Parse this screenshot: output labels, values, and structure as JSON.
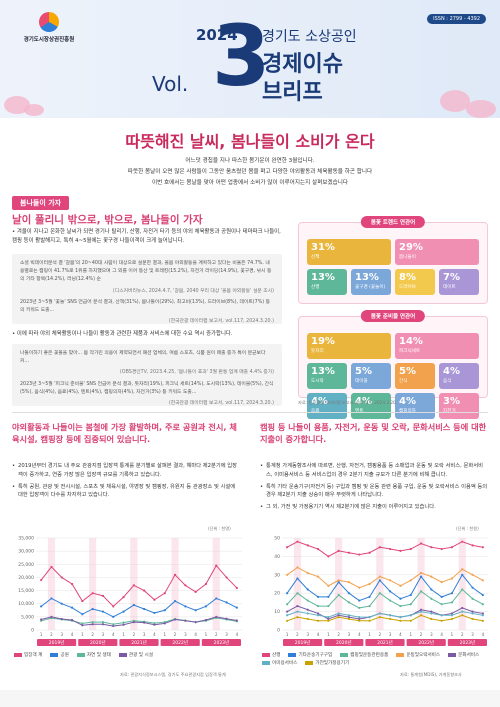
{
  "header": {
    "org": "경기도시장상권진흥원",
    "issn": "ISSN : 2799 - 4392",
    "year": "2024",
    "vol": "Vol.",
    "number": "3",
    "title1": "경기도 소상공인",
    "title2": "경제이슈",
    "title3": "브리프"
  },
  "headline": "따뜻해진 날씨, 봄나들이 소비가 온다",
  "intro": [
    "어느덧 경칩을 지나 따스한 봄기운이 완연한 3월입니다.",
    "따뜻한 봄날이 오면 많은 사람들이 그동안 움츠렸던 몸을 펴고 다양한 야외활동과 체육활동을 하곤 합니다",
    "이번 호에서는 봄날을 맞아 어떤 업종에서 소비가 많이 이루어지는지 살펴보겠습니다"
  ],
  "section": {
    "tag": "봄나들이 가자",
    "title": "날이 풀리니 밖으로, 밖으로, 봄나들이 가자",
    "para1": "• 겨울이 지나고 온화한 날씨가 되면 경기나 탈리기, 산행, 자전거 타기 등의 야외 체육활동과 공원이나 테마파크 나들이, 캠핑 등이 활발해지고, 특히 4~5월에는 꽃구경 나들이객이 크게 늘어납니다.",
    "quote1a": "소셜 빅데이터분석 결 '갈봄'의 20~40대 사람이 대상으로 설문한 결과, 올봄 야외활동을 계획하고 있다는 비율은 74.7%. 내용별로는 캠핑이 41.7%로 1위를 차지했으며 그 외를 이어 등산 및 트레킹(15.2%), 자전거 라이딩(14.9%), 꽃구경, 낚시 등의 기타 항목(14.2%), 러닝(12.4%) 순",
    "quote1a_src": "(디스커버리뉴스, 2024.4.7, '갈봄, 2040 우리 대상 '올봄 야외활동' 설문 조사)",
    "quote1b": "2023년 3~5월 '꽃놀' SNS 언급어 분석 결과, 산책(31%), 봄나들이(29%), 최고비(13%), 드라이브(8%), 데이트(7%) 등의 키워드 도출...",
    "quote1b_src": "(한국관광 데이터랩 보고서, vol.117, 2024.3.20.)",
    "para2": "• 이에 따라 야외 체육활동이나 나들이 활동과 관련한 제품과 서비스에 대한 수요 역시 증가합니다.",
    "quote2a": "나들이하기 좋은 꽃들을 맞아... 봄 작가민 의용이 제약되면서 패션 업체의, 여름 스포츠, 식품 원이 매출 증가 특이 분균보다 커...",
    "quote2a_src": "(OBS경인TV, 2023.4.25, '봄나들이 효과' 3월 판통 업계 매출 4.4% 증가)",
    "quote2b": "2023년 3~5월 '피크닉 준비물' SNS 언급어 분석 결과, 돗자리(19%), 피크닉 세트(14%), 도시락(13%), 테이블(5%), 간식(5%), 음식(4%), 음료(4%), 텐트(4%), 캠핑의자(4%), 자전거(3%) 등 키워드 도출...",
    "quote2b_src": "(한국관광 데이터랩 보고서, vol.117, 2024.3.20.)"
  },
  "info1": {
    "title": "봄꽃 트렌드 연관어",
    "tiles": [
      {
        "pct": "31%",
        "lbl": "산책",
        "color": "#e9b53c"
      },
      {
        "pct": "29%",
        "lbl": "봄나들이",
        "color": "#f08fb1"
      },
      {
        "pct": "13%",
        "lbl": "산행",
        "color": "#5fb79a"
      },
      {
        "pct": "13%",
        "lbl": "꽃구경 (꽃놀이)",
        "color": "#7ba7d9"
      },
      {
        "pct": "8%",
        "lbl": "드라이브",
        "color": "#f2c94c"
      },
      {
        "pct": "7%",
        "lbl": "데이트",
        "color": "#a896d6"
      }
    ]
  },
  "info2": {
    "title": "봄꽃 준비물 연관어",
    "tiles": [
      {
        "pct": "19%",
        "lbl": "돗자리",
        "color": "#e9b53c"
      },
      {
        "pct": "14%",
        "lbl": "피크닉세트",
        "color": "#f08fb1"
      },
      {
        "pct": "13%",
        "lbl": "도시락",
        "color": "#5fb79a"
      },
      {
        "pct": "5%",
        "lbl": "테이블",
        "color": "#7ba7d9"
      },
      {
        "pct": "5%",
        "lbl": "간식",
        "color": "#f2a14c"
      },
      {
        "pct": "4%",
        "lbl": "음식",
        "color": "#a896d6"
      },
      {
        "pct": "4%",
        "lbl": "음료",
        "color": "#62b0c4"
      },
      {
        "pct": "4%",
        "lbl": "텐트",
        "color": "#5fb79a"
      },
      {
        "pct": "4%",
        "lbl": "캠핑의자",
        "color": "#7ba7d9"
      },
      {
        "pct": "3%",
        "lbl": "자전거",
        "color": "#f08fb1"
      }
    ],
    "src": "자료: 한국관광 데이터랩 보고서, vol.117, 2024.3.20."
  },
  "bottom_left": {
    "title": "야외활동과 나들이는 봄철에 가장 활발하며, 주로 공원과 전시, 체육시설, 캠핑장 등에 집중되어 있습니다.",
    "bullets": [
      "2019년부터 경기도 내 주요 관광지점 입장객 통계를 분기별로 살펴본 결과, 해마다 제2분기에 입장객이 증가하고, 연중 가장 많은 입장객 규모를 기록하고 있습니다.",
      "특히 공원, 관광 및 전시시설, 스포츠 및 체육시설, 야영장 및 캠핑장, 유원지 등 관광장소 및 시설에 대한 입장객이 다수를 차지하고 있습니다."
    ],
    "unit": "(단위 : 천명)",
    "src": "자료: 관광지식정보시스템, 경기도 주요관광지점 입장객 통계"
  },
  "bottom_right": {
    "title": "캠핑 등 나들이 용품, 자전거, 운동 및 오락, 문화서비스 등에 대한 지출이 증가합니다.",
    "bullets": [
      "통계청 가계동향조사에 따르면, 산행, 자전거, 캠핑용품 등 소매업과 운동 및 오락 서비스, 문화서비스, 이미용서비스 등 서비스업의 경우 2분기 지출 규모가 다른 분기에 비해 큽니다.",
      "특히 기타 운송기구(자전거 등) 구입과 캠핑 및 운동 관련 용품 구입, 운동 및 오락서비스 이용액 등의 경우 제2분기 지출 상승이 매우 뚜렷하게 나타납니다.",
      "그 외, 가전 및 가정용기기 역시 제2분기에 많은 지출이 이루어지고 있습니다."
    ],
    "unit": "(단위 : 천원)",
    "src": "자료: 통계청(MDIS), 가계동향조사"
  },
  "chart_data": [
    {
      "type": "line",
      "title": "",
      "ylabel": "(단위 : 천명)",
      "ylim": [
        0,
        35000
      ],
      "yticks": [
        0,
        5000,
        10000,
        15000,
        20000,
        25000,
        30000,
        35000
      ],
      "categories": [
        "1",
        "2",
        "3",
        "4",
        "1",
        "2",
        "3",
        "4",
        "1",
        "2",
        "3",
        "4",
        "1",
        "2",
        "3",
        "4",
        "1",
        "2",
        "3",
        "4"
      ],
      "year_groups": [
        "2019년",
        "2020년",
        "2021년",
        "2022년",
        "2023년"
      ],
      "series": [
        {
          "name": "입장객 계",
          "color": "#e0457b",
          "values": [
            19000,
            24000,
            20000,
            17500,
            11000,
            14000,
            13000,
            9000,
            12500,
            17000,
            15000,
            11500,
            14000,
            21000,
            17000,
            14500,
            17500,
            24500,
            20000,
            16000
          ]
        },
        {
          "name": "공원",
          "color": "#2f7fd8",
          "values": [
            9000,
            12000,
            10000,
            8500,
            6000,
            8000,
            7000,
            5000,
            7000,
            9500,
            8000,
            6500,
            7500,
            11000,
            9000,
            7500,
            9000,
            12000,
            10500,
            8500
          ]
        },
        {
          "name": "자연 및 생태",
          "color": "#5fb79a",
          "values": [
            3500,
            4500,
            4000,
            3500,
            2500,
            3000,
            3000,
            2200,
            2800,
            3500,
            3200,
            2600,
            3000,
            4200,
            3600,
            3000,
            3500,
            4600,
            4000,
            3300
          ]
        },
        {
          "name": "관광 및 시설",
          "color": "#7a5aa6",
          "values": [
            4000,
            5000,
            4200,
            3800,
            1800,
            2200,
            2200,
            1500,
            2000,
            3000,
            2800,
            2000,
            2500,
            4000,
            3500,
            3000,
            3800,
            5000,
            4300,
            3600
          ]
        }
      ]
    },
    {
      "type": "line",
      "title": "",
      "ylabel": "(단위 : 천원)",
      "ylim": [
        0,
        50
      ],
      "yticks": [
        0,
        10,
        20,
        30,
        40,
        50
      ],
      "categories": [
        "1",
        "2",
        "3",
        "4",
        "1",
        "2",
        "3",
        "4",
        "1",
        "2",
        "3",
        "4",
        "1",
        "2",
        "3",
        "4",
        "1",
        "2",
        "3",
        "4"
      ],
      "year_groups": [
        "2019년",
        "2020년",
        "2021년",
        "2022년",
        "2023년"
      ],
      "series": [
        {
          "name": "산행",
          "color": "#e0457b",
          "values": [
            45,
            48,
            46,
            44,
            40,
            43,
            42,
            41,
            42,
            45,
            44,
            43,
            44,
            47,
            45,
            44,
            45,
            48,
            46,
            45
          ]
        },
        {
          "name": "기타운송기구구입",
          "color": "#2f7fd8",
          "values": [
            20,
            28,
            22,
            18,
            18,
            26,
            20,
            16,
            18,
            27,
            21,
            17,
            19,
            29,
            22,
            18,
            20,
            30,
            23,
            19
          ]
        },
        {
          "name": "캠핑및운동관련용품",
          "color": "#5fb79a",
          "values": [
            14,
            20,
            16,
            13,
            13,
            19,
            15,
            12,
            13,
            20,
            16,
            13,
            14,
            21,
            17,
            14,
            15,
            22,
            17,
            14
          ]
        },
        {
          "name": "운동및오락서비스",
          "color": "#f2a14c",
          "values": [
            30,
            34,
            31,
            29,
            24,
            27,
            26,
            23,
            25,
            29,
            27,
            24,
            27,
            31,
            29,
            26,
            28,
            33,
            30,
            27
          ]
        },
        {
          "name": "문화서비스",
          "color": "#7a5aa6",
          "values": [
            10,
            13,
            11,
            9,
            6,
            8,
            7,
            6,
            7,
            9,
            8,
            7,
            8,
            11,
            10,
            8,
            9,
            12,
            10,
            9
          ]
        },
        {
          "name": "이미용서비스",
          "color": "#62b0c4",
          "values": [
            8,
            10,
            9,
            8,
            7,
            9,
            8,
            7,
            7,
            9,
            8,
            7,
            8,
            10,
            9,
            8,
            8,
            10,
            9,
            8
          ]
        },
        {
          "name": "가전및가정용기기",
          "color": "#c9a200",
          "values": [
            5,
            7,
            6,
            5,
            5,
            7,
            6,
            5,
            5,
            7,
            6,
            5,
            5,
            8,
            6,
            5,
            6,
            8,
            6,
            5
          ]
        }
      ]
    }
  ]
}
